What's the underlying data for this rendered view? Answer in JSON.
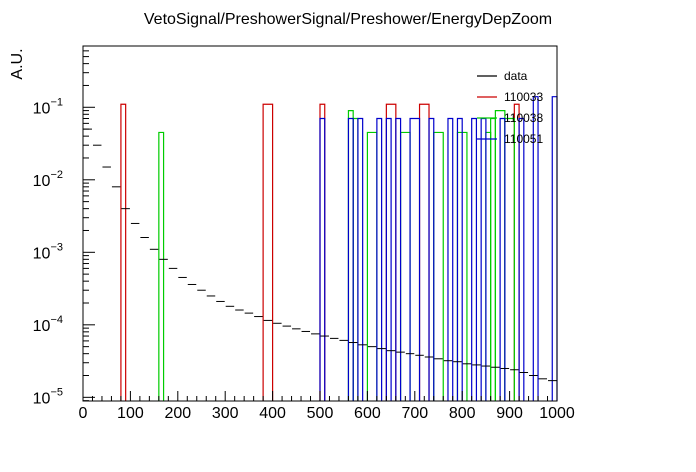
{
  "chart_data": {
    "type": "line",
    "title": "VetoSignal/PreshowerSignal/Preshower/EnergyDepZoom",
    "xlabel": "",
    "ylabel": "A.U.",
    "xlim": [
      0,
      1000
    ],
    "ylim": [
      8.9e-06,
      0.7
    ],
    "yscale": "log",
    "grid": false,
    "legend_position": "top-right",
    "x_ticks": [
      "0",
      "100",
      "200",
      "300",
      "400",
      "500",
      "600",
      "700",
      "800",
      "900",
      "1000"
    ],
    "x_tick_values": [
      0,
      100,
      200,
      300,
      400,
      500,
      600,
      700,
      800,
      900,
      1000
    ],
    "y_ticks": [
      {
        "base": "10",
        "exp": "−5",
        "value": 1e-05
      },
      {
        "base": "10",
        "exp": "−4",
        "value": 0.0001
      },
      {
        "base": "10",
        "exp": "−3",
        "value": 0.001
      },
      {
        "base": "10",
        "exp": "−2",
        "value": 0.01
      },
      {
        "base": "10",
        "exp": "−1",
        "value": 0.1
      }
    ],
    "series": [
      {
        "name": "data",
        "color": "#000000",
        "style": "errorbar",
        "x": [
          10,
          30,
          50,
          70,
          90,
          110,
          130,
          150,
          170,
          190,
          210,
          230,
          250,
          270,
          290,
          310,
          330,
          350,
          370,
          390,
          410,
          430,
          450,
          470,
          490,
          510,
          530,
          550,
          570,
          590,
          610,
          630,
          650,
          670,
          690,
          710,
          730,
          750,
          770,
          790,
          810,
          830,
          850,
          870,
          890,
          910,
          930,
          950,
          970,
          990
        ],
        "values": [
          0.05,
          0.03,
          0.015,
          0.008,
          0.004,
          0.0025,
          0.0016,
          0.0011,
          0.0008,
          0.0006,
          0.00045,
          0.00036,
          0.0003,
          0.00025,
          0.00021,
          0.00018,
          0.00016,
          0.000145,
          0.00013,
          0.000115,
          0.000105,
          9.6e-05,
          8.8e-05,
          8.1e-05,
          7.5e-05,
          7e-05,
          6.5e-05,
          6.1e-05,
          5.7e-05,
          5.3e-05,
          5e-05,
          4.7e-05,
          4.4e-05,
          4.2e-05,
          4e-05,
          3.8e-05,
          3.6e-05,
          3.4e-05,
          3.2e-05,
          3.1e-05,
          2.9e-05,
          2.8e-05,
          2.7e-05,
          2.6e-05,
          2.5e-05,
          2.4e-05,
          2.2e-05,
          2e-05,
          1.8e-05,
          1.7e-05
        ]
      },
      {
        "name": "110033",
        "color": "#cc0000",
        "style": "histogram",
        "bins": [
          {
            "x0": 80,
            "x1": 90,
            "value": 0.11
          },
          {
            "x0": 380,
            "x1": 400,
            "value": 0.11
          },
          {
            "x0": 500,
            "x1": 510,
            "value": 0.11
          },
          {
            "x0": 640,
            "x1": 660,
            "value": 0.11
          },
          {
            "x0": 710,
            "x1": 730,
            "value": 0.11
          },
          {
            "x0": 910,
            "x1": 920,
            "value": 0.11
          }
        ]
      },
      {
        "name": "110038",
        "color": "#00cc00",
        "style": "histogram",
        "bins": [
          {
            "x0": 160,
            "x1": 170,
            "value": 0.045
          },
          {
            "x0": 560,
            "x1": 570,
            "value": 0.09
          },
          {
            "x0": 570,
            "x1": 580,
            "value": 0.07
          },
          {
            "x0": 600,
            "x1": 620,
            "value": 0.045
          },
          {
            "x0": 670,
            "x1": 690,
            "value": 0.045
          },
          {
            "x0": 740,
            "x1": 760,
            "value": 0.045
          },
          {
            "x0": 790,
            "x1": 810,
            "value": 0.045
          },
          {
            "x0": 850,
            "x1": 860,
            "value": 0.045
          },
          {
            "x0": 860,
            "x1": 870,
            "value": 0.07
          },
          {
            "x0": 870,
            "x1": 890,
            "value": 0.09
          },
          {
            "x0": 890,
            "x1": 910,
            "value": 0.07
          }
        ]
      },
      {
        "name": "110051",
        "color": "#0000cc",
        "style": "histogram",
        "bins": [
          {
            "x0": 500,
            "x1": 510,
            "value": 0.07
          },
          {
            "x0": 560,
            "x1": 570,
            "value": 0.07
          },
          {
            "x0": 580,
            "x1": 590,
            "value": 0.07
          },
          {
            "x0": 620,
            "x1": 630,
            "value": 0.07
          },
          {
            "x0": 640,
            "x1": 650,
            "value": 0.07
          },
          {
            "x0": 660,
            "x1": 670,
            "value": 0.07
          },
          {
            "x0": 690,
            "x1": 710,
            "value": 0.07
          },
          {
            "x0": 730,
            "x1": 740,
            "value": 0.07
          },
          {
            "x0": 770,
            "x1": 780,
            "value": 0.07
          },
          {
            "x0": 790,
            "x1": 800,
            "value": 0.07
          },
          {
            "x0": 820,
            "x1": 830,
            "value": 0.07
          },
          {
            "x0": 840,
            "x1": 850,
            "value": 0.07
          },
          {
            "x0": 880,
            "x1": 890,
            "value": 0.07
          },
          {
            "x0": 920,
            "x1": 930,
            "value": 0.07
          },
          {
            "x0": 950,
            "x1": 960,
            "value": 0.14
          },
          {
            "x0": 990,
            "x1": 1000,
            "value": 0.14
          }
        ]
      }
    ]
  }
}
